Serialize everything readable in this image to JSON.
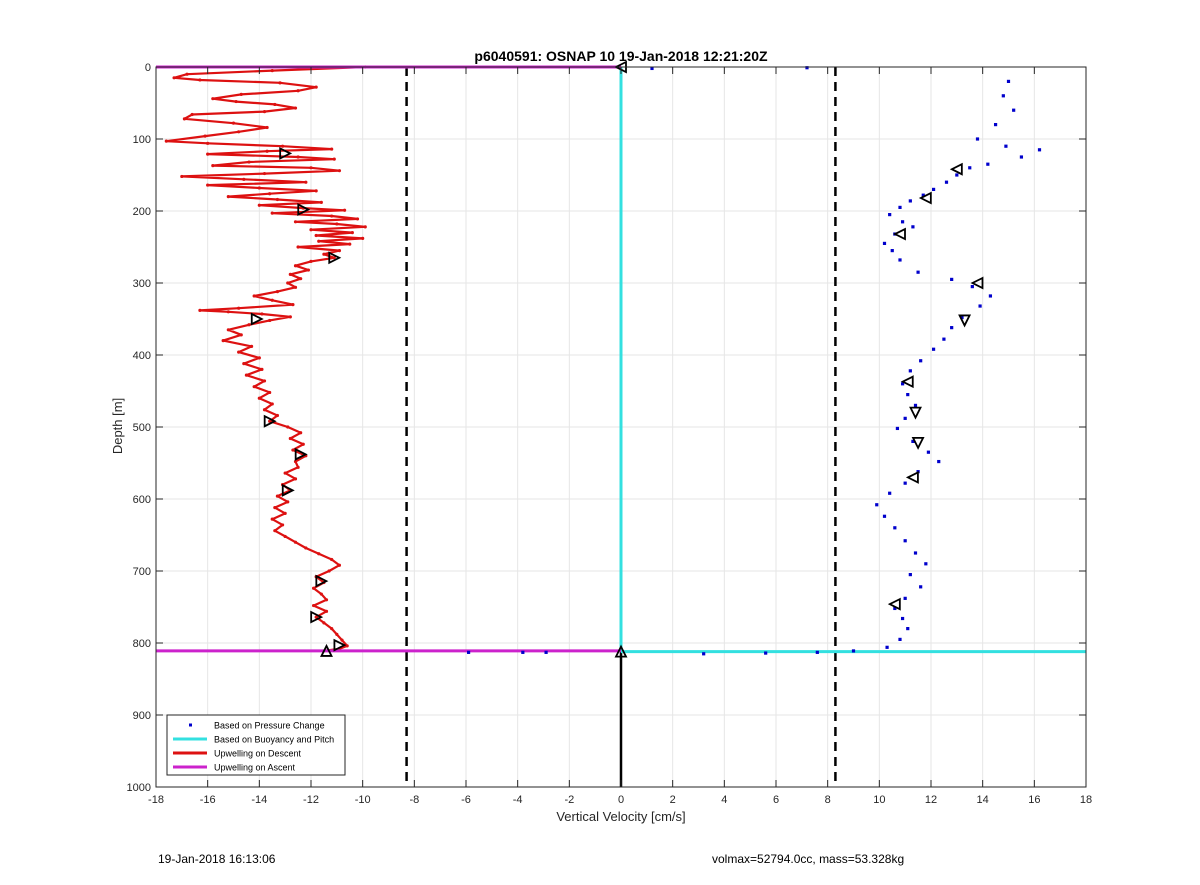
{
  "figure": {
    "footer_left": "19-Jan-2018 16:13:06",
    "footer_right": "volmax=52794.0cc, mass=53.328kg"
  },
  "chart_data": {
    "type": "scatter",
    "title": "p6040591: OSNAP 10 19-Jan-2018 12:21:20Z",
    "xlabel": "Vertical Velocity [cm/s]",
    "ylabel": "Depth [m]",
    "xlim": [
      -18,
      18
    ],
    "ylim": [
      0,
      1000
    ],
    "y_reversed": true,
    "xticks": [
      -18,
      -16,
      -14,
      -12,
      -10,
      -8,
      -6,
      -4,
      -2,
      0,
      2,
      4,
      6,
      8,
      10,
      12,
      14,
      16,
      18
    ],
    "yticks": [
      0,
      100,
      200,
      300,
      400,
      500,
      600,
      700,
      800,
      900,
      1000
    ],
    "grid": true,
    "legend": {
      "placement": "bottom-left",
      "entries": [
        {
          "label": "Based on Pressure Change",
          "color": "#0000cc",
          "style": "dot"
        },
        {
          "label": "Based on Buoyancy and Pitch",
          "color": "#33e0e0",
          "style": "line"
        },
        {
          "label": "Upwelling on Descent",
          "color": "#dd1111",
          "style": "line"
        },
        {
          "label": "Upwelling on Ascent",
          "color": "#cc22cc",
          "style": "line"
        }
      ]
    },
    "series": [
      {
        "name": "Based on Pressure Change",
        "type": "scatter",
        "color": "#0000cc",
        "points": [
          [
            15.0,
            20
          ],
          [
            14.8,
            40
          ],
          [
            15.2,
            60
          ],
          [
            14.5,
            80
          ],
          [
            13.8,
            100
          ],
          [
            14.9,
            110
          ],
          [
            16.2,
            115
          ],
          [
            15.5,
            125
          ],
          [
            14.2,
            135
          ],
          [
            13.5,
            140
          ],
          [
            13.0,
            150
          ],
          [
            12.6,
            160
          ],
          [
            12.1,
            170
          ],
          [
            11.7,
            178
          ],
          [
            11.2,
            186
          ],
          [
            10.8,
            195
          ],
          [
            10.4,
            205
          ],
          [
            10.9,
            215
          ],
          [
            11.3,
            222
          ],
          [
            10.6,
            232
          ],
          [
            10.2,
            245
          ],
          [
            10.5,
            255
          ],
          [
            10.8,
            268
          ],
          [
            11.5,
            285
          ],
          [
            12.8,
            295
          ],
          [
            13.6,
            305
          ],
          [
            14.3,
            318
          ],
          [
            13.9,
            332
          ],
          [
            13.2,
            348
          ],
          [
            12.8,
            362
          ],
          [
            12.5,
            378
          ],
          [
            12.1,
            392
          ],
          [
            11.6,
            408
          ],
          [
            11.2,
            422
          ],
          [
            10.9,
            440
          ],
          [
            11.1,
            455
          ],
          [
            11.4,
            470
          ],
          [
            11.0,
            488
          ],
          [
            10.7,
            502
          ],
          [
            11.3,
            520
          ],
          [
            11.9,
            535
          ],
          [
            12.3,
            548
          ],
          [
            11.5,
            562
          ],
          [
            11.0,
            578
          ],
          [
            10.4,
            592
          ],
          [
            9.9,
            608
          ],
          [
            10.2,
            624
          ],
          [
            10.6,
            640
          ],
          [
            11.0,
            658
          ],
          [
            11.4,
            675
          ],
          [
            11.8,
            690
          ],
          [
            11.2,
            705
          ],
          [
            11.6,
            722
          ],
          [
            11.0,
            738
          ],
          [
            10.6,
            752
          ],
          [
            10.9,
            766
          ],
          [
            11.1,
            780
          ],
          [
            10.8,
            795
          ],
          [
            10.3,
            806
          ],
          [
            9.0,
            811
          ],
          [
            7.6,
            813
          ],
          [
            5.6,
            814
          ],
          [
            3.2,
            815
          ],
          [
            -2.9,
            813
          ],
          [
            -3.8,
            813
          ],
          [
            -5.9,
            813
          ],
          [
            7.2,
            1
          ],
          [
            1.2,
            2
          ]
        ]
      },
      {
        "name": "Based on Buoyancy and Pitch",
        "type": "line",
        "color": "#33e0e0",
        "segments": [
          [
            [
              0,
              0
            ],
            [
              0,
              812
            ]
          ],
          [
            [
              0,
              812
            ],
            [
              18,
              812
            ]
          ]
        ]
      },
      {
        "name": "Upwelling on Descent",
        "type": "line",
        "color": "#dd1111",
        "points": [
          [
            -9.9,
            0
          ],
          [
            -13.5,
            5
          ],
          [
            -16.8,
            10
          ],
          [
            -17.3,
            15
          ],
          [
            -16.3,
            18
          ],
          [
            -13.2,
            22
          ],
          [
            -11.8,
            28
          ],
          [
            -12.5,
            33
          ],
          [
            -14.7,
            38
          ],
          [
            -15.8,
            44
          ],
          [
            -14.9,
            48
          ],
          [
            -13.4,
            52
          ],
          [
            -12.6,
            57
          ],
          [
            -13.8,
            62
          ],
          [
            -16.6,
            66
          ],
          [
            -16.9,
            72
          ],
          [
            -15.0,
            78
          ],
          [
            -13.7,
            84
          ],
          [
            -14.8,
            90
          ],
          [
            -16.1,
            96
          ],
          [
            -17.6,
            103
          ],
          [
            -16.0,
            106
          ],
          [
            -13.1,
            110
          ],
          [
            -11.2,
            114
          ],
          [
            -13.7,
            117
          ],
          [
            -16.0,
            121
          ],
          [
            -12.5,
            125
          ],
          [
            -11.1,
            128
          ],
          [
            -14.4,
            132
          ],
          [
            -15.8,
            137
          ],
          [
            -12.0,
            140
          ],
          [
            -10.9,
            144
          ],
          [
            -13.8,
            148
          ],
          [
            -17.0,
            152
          ],
          [
            -14.6,
            156
          ],
          [
            -12.2,
            160
          ],
          [
            -16.0,
            164
          ],
          [
            -14.0,
            168
          ],
          [
            -11.8,
            172
          ],
          [
            -13.6,
            176
          ],
          [
            -15.2,
            180
          ],
          [
            -13.3,
            184
          ],
          [
            -11.6,
            188
          ],
          [
            -14.0,
            192
          ],
          [
            -12.3,
            196
          ],
          [
            -10.7,
            199
          ],
          [
            -13.5,
            203
          ],
          [
            -11.2,
            207
          ],
          [
            -10.2,
            211
          ],
          [
            -12.6,
            215
          ],
          [
            -11.0,
            218
          ],
          [
            -9.9,
            222
          ],
          [
            -12.0,
            226
          ],
          [
            -10.4,
            230
          ],
          [
            -11.8,
            234
          ],
          [
            -10.0,
            238
          ],
          [
            -11.7,
            242
          ],
          [
            -10.5,
            246
          ],
          [
            -12.5,
            250
          ],
          [
            -10.9,
            255
          ],
          [
            -11.5,
            260
          ],
          [
            -11.1,
            265
          ],
          [
            -12.0,
            270
          ],
          [
            -12.6,
            276
          ],
          [
            -12.1,
            282
          ],
          [
            -12.8,
            288
          ],
          [
            -12.4,
            294
          ],
          [
            -12.9,
            300
          ],
          [
            -12.6,
            306
          ],
          [
            -13.3,
            312
          ],
          [
            -14.2,
            318
          ],
          [
            -13.5,
            324
          ],
          [
            -12.7,
            330
          ],
          [
            -14.8,
            335
          ],
          [
            -16.3,
            338
          ],
          [
            -15.2,
            340
          ],
          [
            -13.9,
            343
          ],
          [
            -12.8,
            347
          ],
          [
            -13.6,
            352
          ],
          [
            -14.4,
            358
          ],
          [
            -15.2,
            365
          ],
          [
            -14.7,
            372
          ],
          [
            -15.4,
            380
          ],
          [
            -14.3,
            388
          ],
          [
            -14.8,
            396
          ],
          [
            -14.0,
            404
          ],
          [
            -14.6,
            412
          ],
          [
            -13.9,
            420
          ],
          [
            -14.5,
            428
          ],
          [
            -13.8,
            436
          ],
          [
            -14.2,
            444
          ],
          [
            -13.6,
            452
          ],
          [
            -14.0,
            460
          ],
          [
            -13.5,
            468
          ],
          [
            -13.8,
            476
          ],
          [
            -13.3,
            484
          ],
          [
            -13.6,
            492
          ],
          [
            -12.9,
            500
          ],
          [
            -12.4,
            508
          ],
          [
            -12.8,
            516
          ],
          [
            -12.3,
            524
          ],
          [
            -12.7,
            532
          ],
          [
            -12.2,
            540
          ],
          [
            -12.6,
            548
          ],
          [
            -12.5,
            556
          ],
          [
            -13.0,
            564
          ],
          [
            -12.6,
            572
          ],
          [
            -13.1,
            580
          ],
          [
            -12.8,
            588
          ],
          [
            -13.3,
            596
          ],
          [
            -12.9,
            604
          ],
          [
            -13.4,
            612
          ],
          [
            -13.0,
            620
          ],
          [
            -13.5,
            628
          ],
          [
            -13.1,
            636
          ],
          [
            -13.4,
            644
          ],
          [
            -13.0,
            652
          ],
          [
            -12.6,
            660
          ],
          [
            -12.2,
            668
          ],
          [
            -11.7,
            676
          ],
          [
            -11.2,
            684
          ],
          [
            -10.9,
            692
          ],
          [
            -11.3,
            700
          ],
          [
            -11.8,
            708
          ],
          [
            -11.5,
            716
          ],
          [
            -11.9,
            724
          ],
          [
            -11.6,
            732
          ],
          [
            -11.4,
            740
          ],
          [
            -11.9,
            748
          ],
          [
            -11.4,
            756
          ],
          [
            -11.8,
            764
          ],
          [
            -11.5,
            772
          ],
          [
            -11.2,
            780
          ],
          [
            -11.0,
            788
          ],
          [
            -10.8,
            796
          ],
          [
            -10.6,
            804
          ],
          [
            -10.9,
            808
          ],
          [
            -11.5,
            811
          ]
        ]
      },
      {
        "name": "Upwelling on Ascent",
        "type": "line",
        "color": "#cc22cc",
        "segments": [
          [
            [
              -18,
              0
            ],
            [
              0,
              0
            ]
          ],
          [
            [
              -18,
              811
            ],
            [
              0,
              811
            ]
          ]
        ]
      }
    ],
    "vertical_lines": [
      {
        "x": -8.3,
        "style": "dashed",
        "color": "#000000"
      },
      {
        "x": 8.3,
        "style": "dashed",
        "color": "#000000"
      },
      {
        "x": 0,
        "from": 812,
        "to": 1000,
        "style": "solid",
        "color": "#000000"
      }
    ],
    "markers": [
      {
        "x": 0,
        "y": 0,
        "shape": "tri-left"
      },
      {
        "x": -13.0,
        "y": 120,
        "shape": "tri-right"
      },
      {
        "x": -12.3,
        "y": 198,
        "shape": "tri-right"
      },
      {
        "x": -11.1,
        "y": 265,
        "shape": "tri-right"
      },
      {
        "x": -14.1,
        "y": 350,
        "shape": "tri-right"
      },
      {
        "x": -13.6,
        "y": 492,
        "shape": "tri-right"
      },
      {
        "x": -12.4,
        "y": 538,
        "shape": "tri-right"
      },
      {
        "x": -12.9,
        "y": 588,
        "shape": "tri-right"
      },
      {
        "x": -11.6,
        "y": 714,
        "shape": "tri-right"
      },
      {
        "x": -11.8,
        "y": 764,
        "shape": "tri-right"
      },
      {
        "x": -10.9,
        "y": 803,
        "shape": "tri-right"
      },
      {
        "x": -11.4,
        "y": 811,
        "shape": "tri-up"
      },
      {
        "x": 0,
        "y": 812,
        "shape": "tri-up"
      },
      {
        "x": 13.0,
        "y": 142,
        "shape": "tri-left"
      },
      {
        "x": 11.8,
        "y": 182,
        "shape": "tri-left"
      },
      {
        "x": 10.8,
        "y": 232,
        "shape": "tri-left"
      },
      {
        "x": 13.8,
        "y": 300,
        "shape": "tri-left"
      },
      {
        "x": 13.3,
        "y": 352,
        "shape": "tri-down"
      },
      {
        "x": 11.1,
        "y": 437,
        "shape": "tri-left"
      },
      {
        "x": 11.4,
        "y": 480,
        "shape": "tri-down"
      },
      {
        "x": 11.5,
        "y": 522,
        "shape": "tri-down"
      },
      {
        "x": 11.3,
        "y": 570,
        "shape": "tri-left"
      },
      {
        "x": 10.6,
        "y": 746,
        "shape": "tri-left"
      }
    ]
  }
}
